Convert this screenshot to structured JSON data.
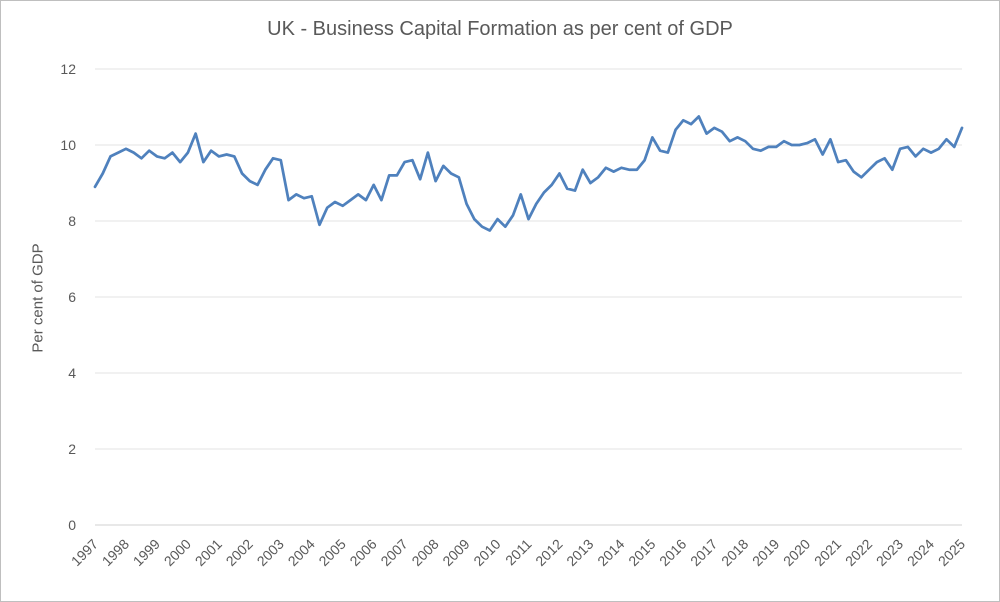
{
  "chart_data": {
    "type": "line",
    "title": "UK - Business Capital Formation as  per cent of GDP",
    "xlabel": "",
    "ylabel": "Per cent of GDP",
    "ylim": [
      0,
      12
    ],
    "yticks": [
      0,
      2,
      4,
      6,
      8,
      10,
      12
    ],
    "year_labels": [
      "1997",
      "1998",
      "1999",
      "2000",
      "2001",
      "2002",
      "2003",
      "2004",
      "2005",
      "2006",
      "2007",
      "2008",
      "2009",
      "2010",
      "2011",
      "2012",
      "2013",
      "2014",
      "2015",
      "2016",
      "2017",
      "2018",
      "2019",
      "2020",
      "2021",
      "2022",
      "2023",
      "2024",
      "2025"
    ],
    "grid": true,
    "legend": "none",
    "colors": {
      "line": "#4f81bd",
      "grid": "#e3e3e3"
    },
    "series": [
      {
        "name": "",
        "x_start": "1997 Q1",
        "frequency": "quarterly",
        "values": [
          8.9,
          9.25,
          9.7,
          9.8,
          9.9,
          9.8,
          9.65,
          9.85,
          9.7,
          9.65,
          9.8,
          9.55,
          9.8,
          10.3,
          9.55,
          9.85,
          9.7,
          9.75,
          9.7,
          9.25,
          9.05,
          8.95,
          9.35,
          9.65,
          9.6,
          8.55,
          8.7,
          8.6,
          8.65,
          7.9,
          8.35,
          8.5,
          8.4,
          8.55,
          8.7,
          8.55,
          8.95,
          8.55,
          9.2,
          9.2,
          9.55,
          9.6,
          9.1,
          9.8,
          9.05,
          9.45,
          9.25,
          9.15,
          8.45,
          8.05,
          7.85,
          7.75,
          8.05,
          7.85,
          8.15,
          8.7,
          8.05,
          8.45,
          8.75,
          8.95,
          9.25,
          8.85,
          8.8,
          9.35,
          9.0,
          9.15,
          9.4,
          9.3,
          9.4,
          9.35,
          9.35,
          9.6,
          10.2,
          9.85,
          9.8,
          10.4,
          10.65,
          10.55,
          10.75,
          10.3,
          10.45,
          10.35,
          10.1,
          10.2,
          10.1,
          9.9,
          9.85,
          9.95,
          9.95,
          10.1,
          10.0,
          10.0,
          10.05,
          10.15,
          9.75,
          10.15,
          9.55,
          9.6,
          9.3,
          9.15,
          9.35,
          9.55,
          9.65,
          9.35,
          9.9,
          9.95,
          9.7,
          9.9,
          9.8,
          9.9,
          10.15,
          9.95,
          10.45
        ]
      }
    ]
  }
}
